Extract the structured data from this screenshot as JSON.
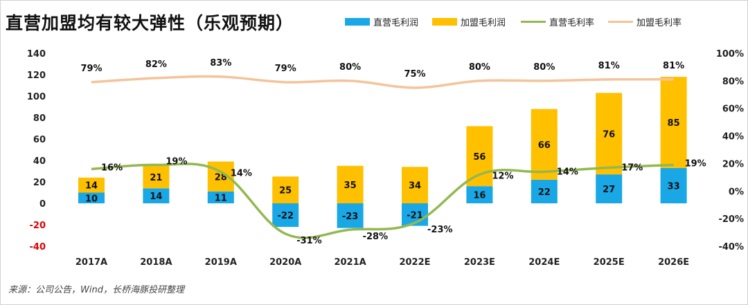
{
  "title": "直营加盟均有较大弹性（乐观预期）",
  "source": "来源：公司公告，Wind，长桥海豚投研整理",
  "colors": {
    "direct_profit": "#19A7E6",
    "franchise_profit": "#FFC000",
    "direct_margin": "#93B850",
    "franchise_margin": "#F5C39A",
    "negative_tick": "#e00000"
  },
  "legend": [
    {
      "label": "直营毛利润",
      "kind": "box",
      "color": "#19A7E6"
    },
    {
      "label": "加盟毛利润",
      "kind": "box",
      "color": "#FFC000"
    },
    {
      "label": "直营毛利率",
      "kind": "line",
      "color": "#93B850"
    },
    {
      "label": "加盟毛利率",
      "kind": "line",
      "color": "#F5C39A"
    }
  ],
  "chart_data": {
    "type": "bar",
    "stacked": true,
    "categories": [
      "2017A",
      "2018A",
      "2019A",
      "2020A",
      "2021A",
      "2022E",
      "2023E",
      "2024E",
      "2025E",
      "2026E"
    ],
    "series": [
      {
        "name": "直营毛利润",
        "type": "bar",
        "axis": "left",
        "values": [
          10,
          14,
          11,
          -22,
          -23,
          -21,
          16,
          22,
          27,
          33
        ]
      },
      {
        "name": "加盟毛利润",
        "type": "bar",
        "axis": "left",
        "values": [
          14,
          21,
          28,
          25,
          35,
          34,
          56,
          66,
          76,
          85
        ]
      },
      {
        "name": "直营毛利率",
        "type": "line",
        "axis": "right",
        "values": [
          16,
          19,
          14,
          -31,
          -28,
          -23,
          12,
          14,
          17,
          19
        ]
      },
      {
        "name": "加盟毛利率",
        "type": "line",
        "axis": "right",
        "values": [
          79,
          82,
          83,
          79,
          80,
          75,
          80,
          80,
          81,
          81
        ]
      }
    ],
    "y_left": {
      "min": -40,
      "max": 140,
      "step": 20
    },
    "y_right": {
      "min": -40,
      "max": 100,
      "step": 20,
      "unit": "%"
    },
    "grid": false,
    "legend_position": "top-right"
  }
}
